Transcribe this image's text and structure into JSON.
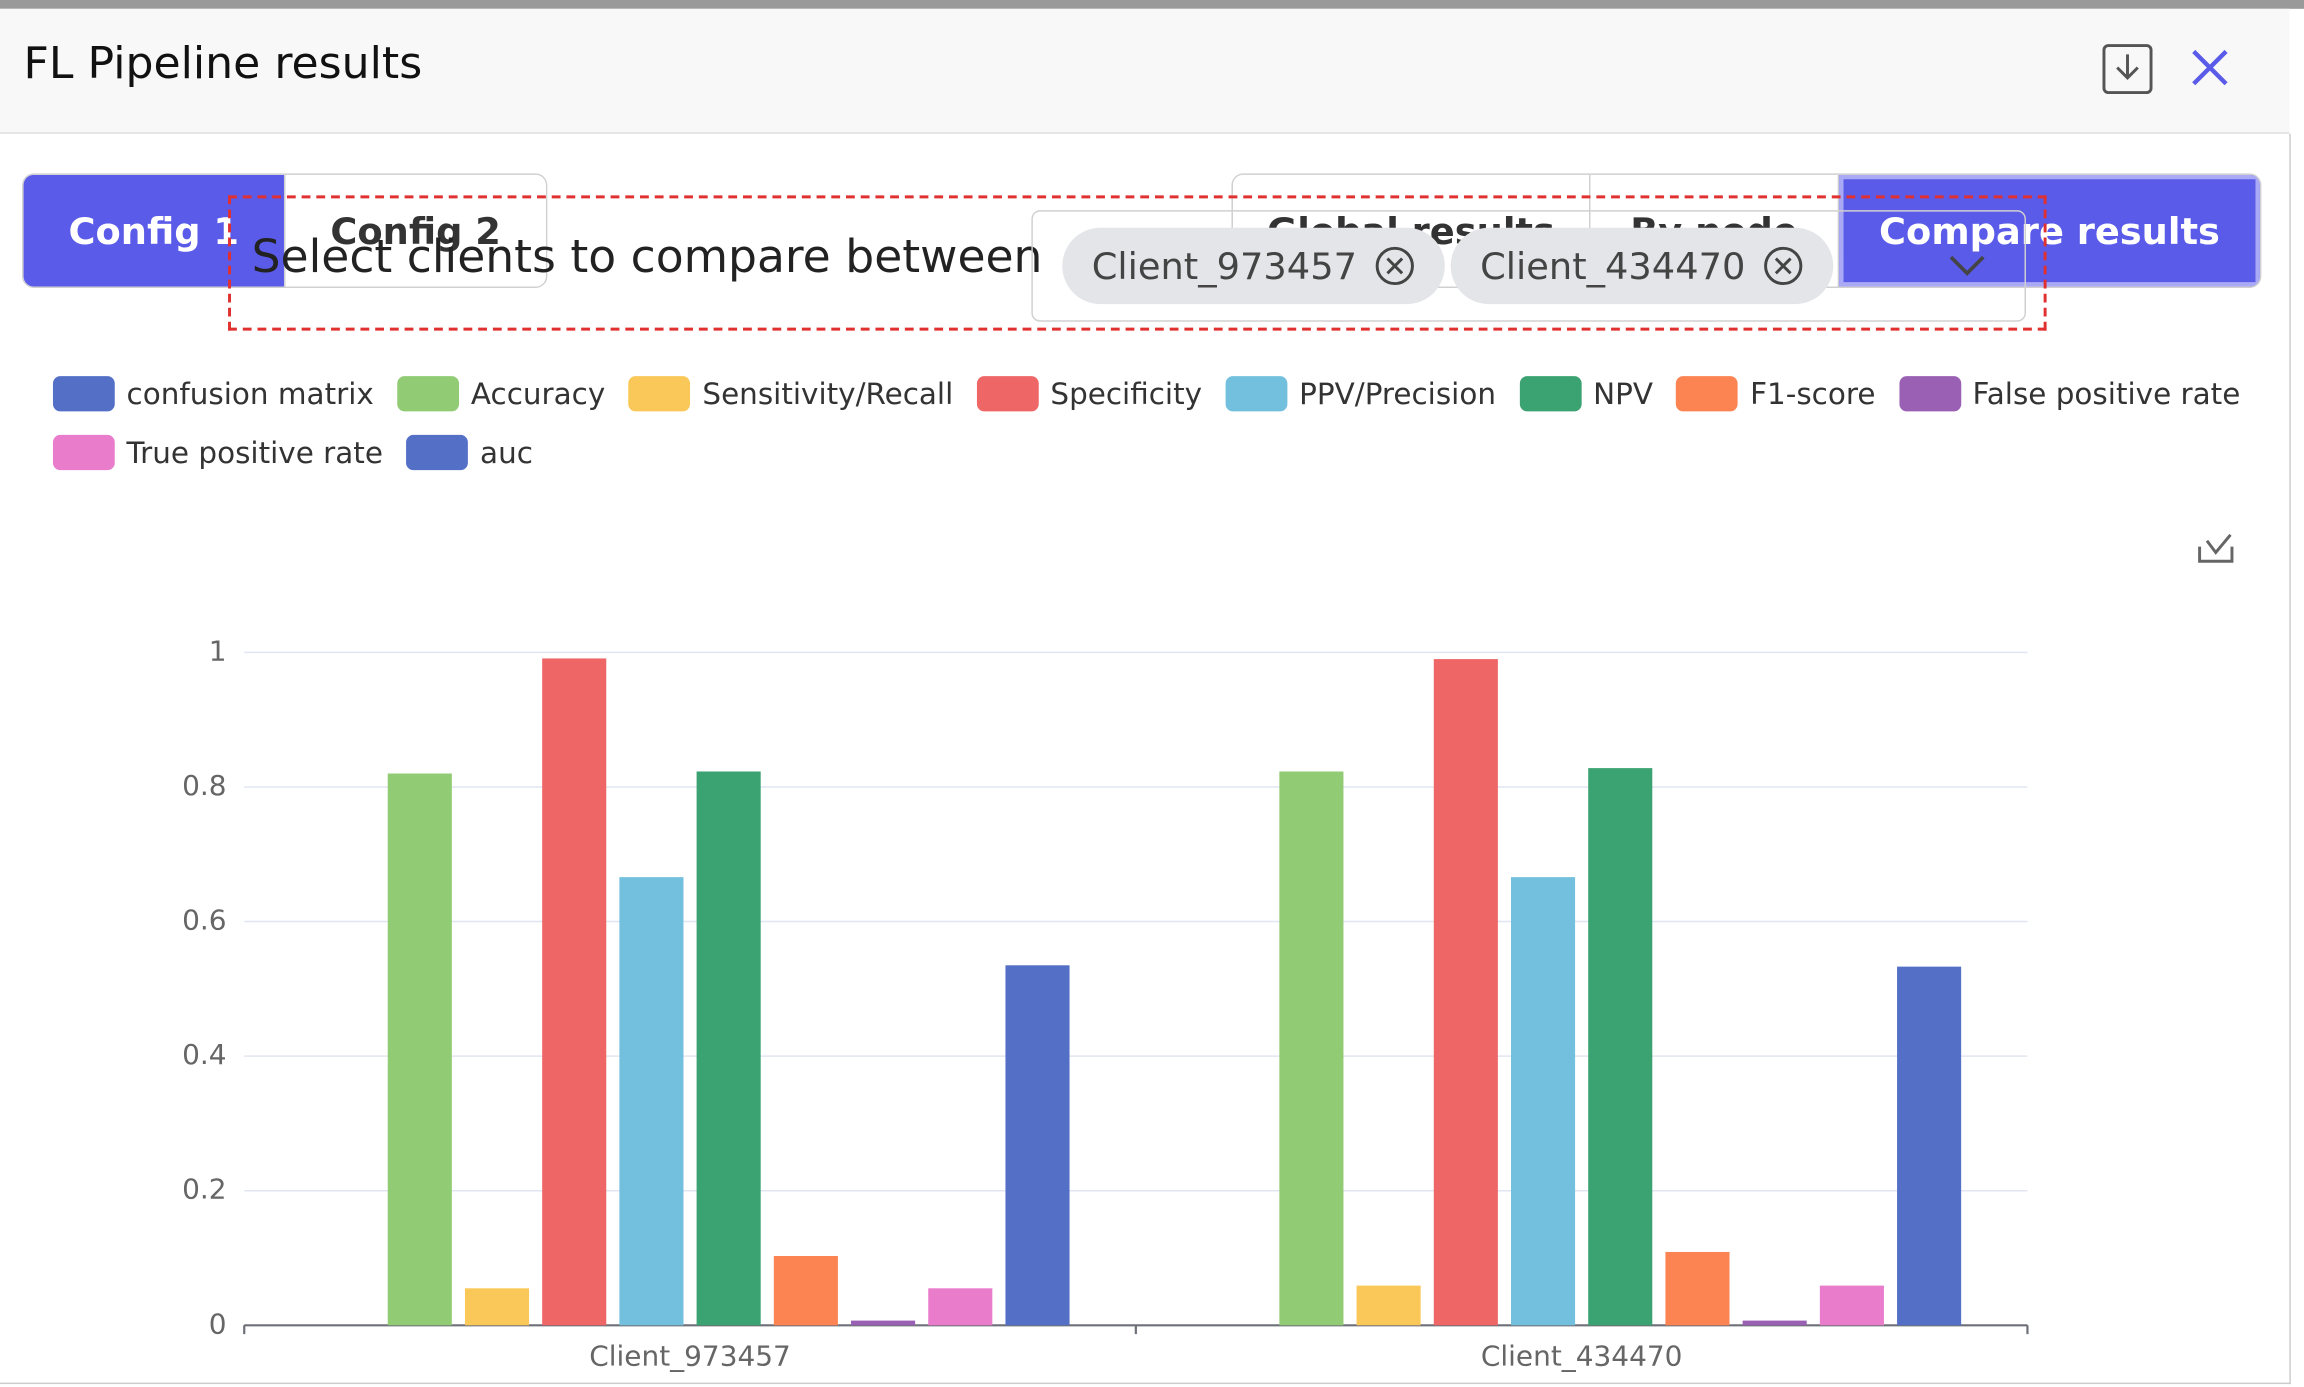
{
  "header": {
    "title": "FL Pipeline results"
  },
  "config_tabs": [
    "Config 1",
    "Config 2"
  ],
  "view_tabs": [
    "Global results",
    "By node",
    "Compare results"
  ],
  "selector": {
    "label": "Select clients to compare between",
    "chips": [
      "Client_973457",
      "Client_434470"
    ]
  },
  "chart_data": {
    "type": "bar",
    "categories": [
      "Client_973457",
      "Client_434470"
    ],
    "series": [
      {
        "name": "confusion matrix",
        "color": "#5470c6",
        "values": [
          0,
          0
        ]
      },
      {
        "name": "Accuracy",
        "color": "#91cc75",
        "values": [
          0.82,
          0.823
        ]
      },
      {
        "name": "Sensitivity/Recall",
        "color": "#fac858",
        "values": [
          0.055,
          0.059
        ]
      },
      {
        "name": "Specificity",
        "color": "#ee6666",
        "values": [
          0.991,
          0.99
        ]
      },
      {
        "name": "PPV/Precision",
        "color": "#73c0de",
        "values": [
          0.666,
          0.666
        ]
      },
      {
        "name": "NPV",
        "color": "#3ba272",
        "values": [
          0.823,
          0.828
        ]
      },
      {
        "name": "F1-score",
        "color": "#fc8452",
        "values": [
          0.103,
          0.109
        ]
      },
      {
        "name": "False positive rate",
        "color": "#9a60b4",
        "values": [
          0.007,
          0.007
        ]
      },
      {
        "name": "True positive rate",
        "color": "#ea7ccc",
        "values": [
          0.055,
          0.059
        ]
      },
      {
        "name": "auc",
        "color": "#5470c6",
        "values": [
          0.535,
          0.533
        ]
      }
    ],
    "ylim": [
      0,
      1
    ],
    "yticks": [
      0,
      0.2,
      0.4,
      0.6,
      0.8,
      1
    ],
    "grid": true,
    "legend": "top-left"
  }
}
